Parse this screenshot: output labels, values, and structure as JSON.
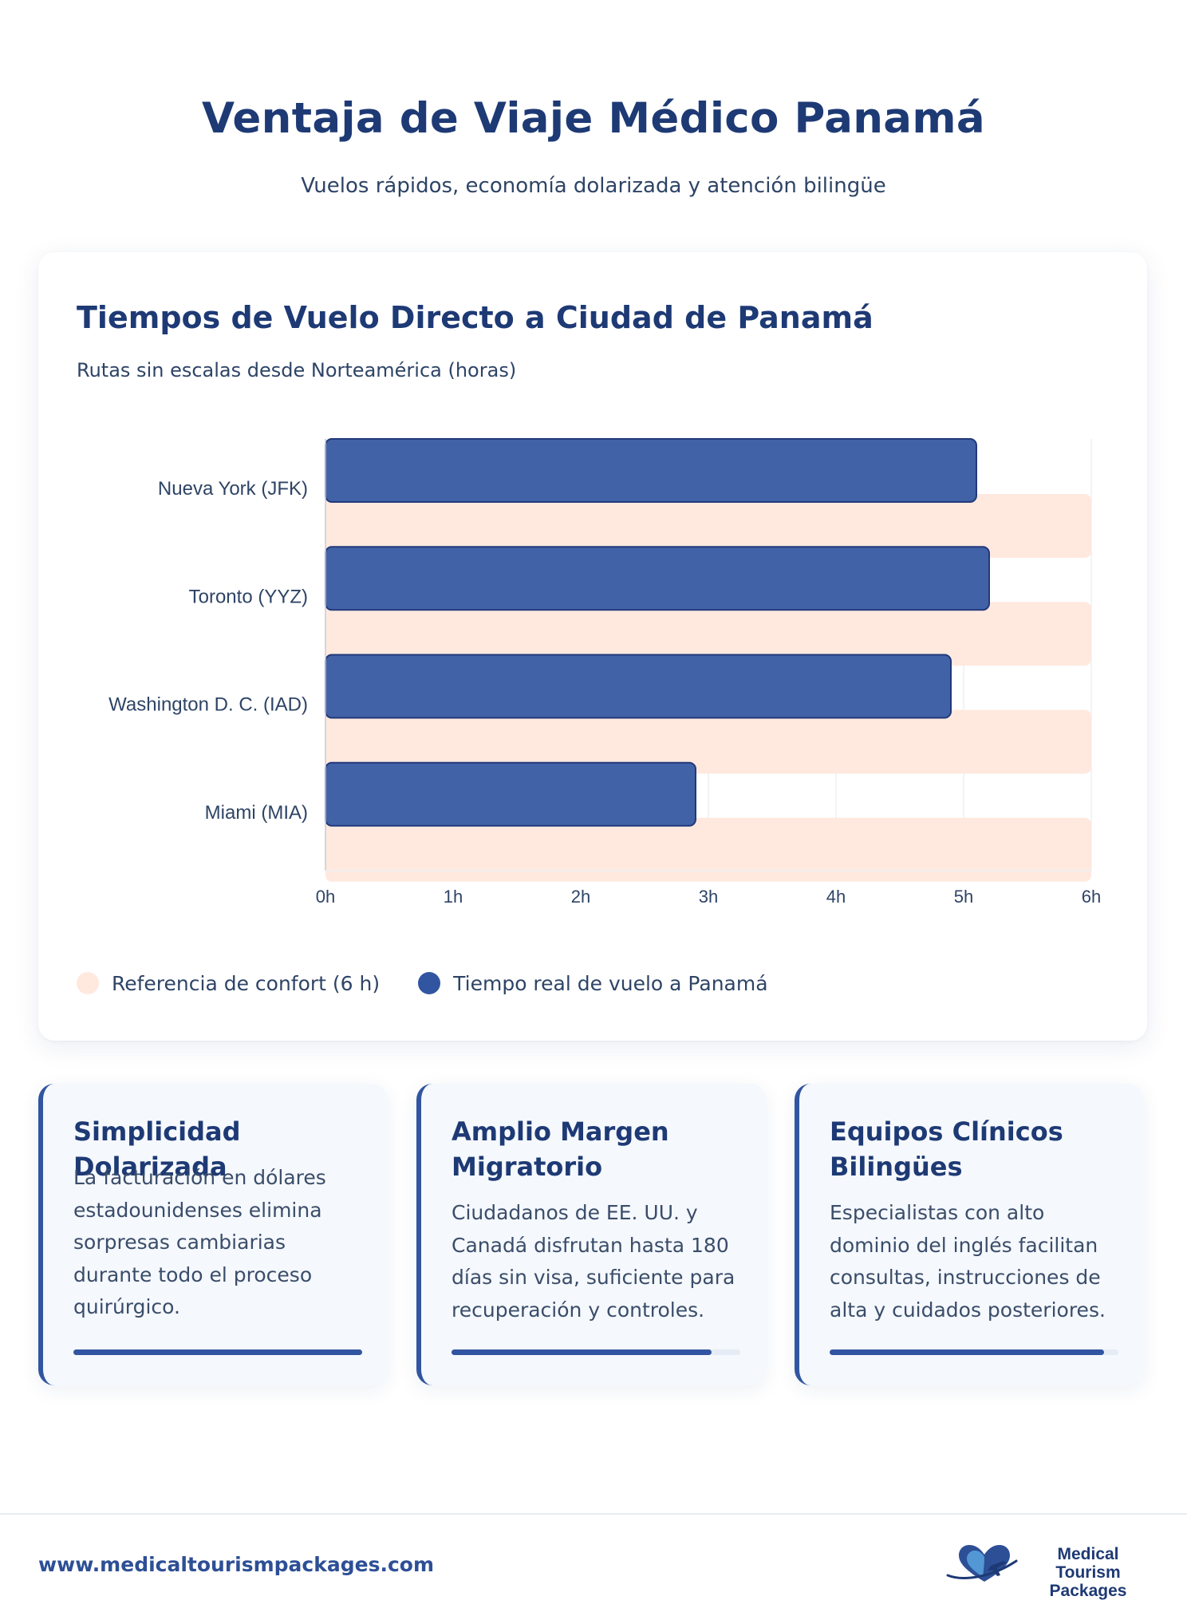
{
  "header": {
    "title": "Ventaja de Viaje Médico Panamá",
    "subtitle": "Vuelos rápidos, economía dolarizada y atención bilingüe"
  },
  "chart_data": {
    "type": "bar",
    "orientation": "horizontal",
    "title": "Tiempos de Vuelo Directo a Ciudad de Panamá",
    "subtitle": "Rutas sin escalas desde Norteamérica (horas)",
    "categories": [
      "Nueva York (JFK)",
      "Toronto (YYZ)",
      "Washington D. C. (IAD)",
      "Miami (MIA)"
    ],
    "series": [
      {
        "name": "Referencia de confort (6 h)",
        "values": [
          6,
          6,
          6,
          6
        ],
        "color": "#ffe9df"
      },
      {
        "name": "Tiempo real de vuelo a Panamá",
        "values": [
          5.1,
          5.2,
          4.9,
          2.9
        ],
        "color": "#4262a7"
      }
    ],
    "xlim": [
      0,
      6
    ],
    "xticks": [
      "0h",
      "1h",
      "2h",
      "3h",
      "4h",
      "5h",
      "6h"
    ],
    "grid": true,
    "legend_position": "bottom-left"
  },
  "features": [
    {
      "title": "Simplicidad Dolarizada",
      "text": "La facturación en dólares estadounidenses elimina sorpresas cambiarias durante todo el proceso quirúrgico.",
      "progress": 1.0
    },
    {
      "title": "Amplio Margen Migratorio",
      "text": "Ciudadanos de EE. UU. y Canadá disfrutan hasta 180 días sin visa, suficiente para recuperación y controles.",
      "progress": 0.9
    },
    {
      "title": "Equipos Clínicos Bilingües",
      "text": "Especialistas con alto dominio del inglés facilitan consultas, instrucciones de alta y cuidados posteriores.",
      "progress": 0.95
    }
  ],
  "footer": {
    "url": "www.medicaltourismpackages.com",
    "logo_line1": "Medical Tourism",
    "logo_line2": "Packages"
  },
  "colors": {
    "primary": "#1e3a75",
    "accent": "#3155a0",
    "bar": "#4262a7",
    "reference": "#ffe9df"
  },
  "icons": {
    "logo": "heart-airplane-icon"
  }
}
